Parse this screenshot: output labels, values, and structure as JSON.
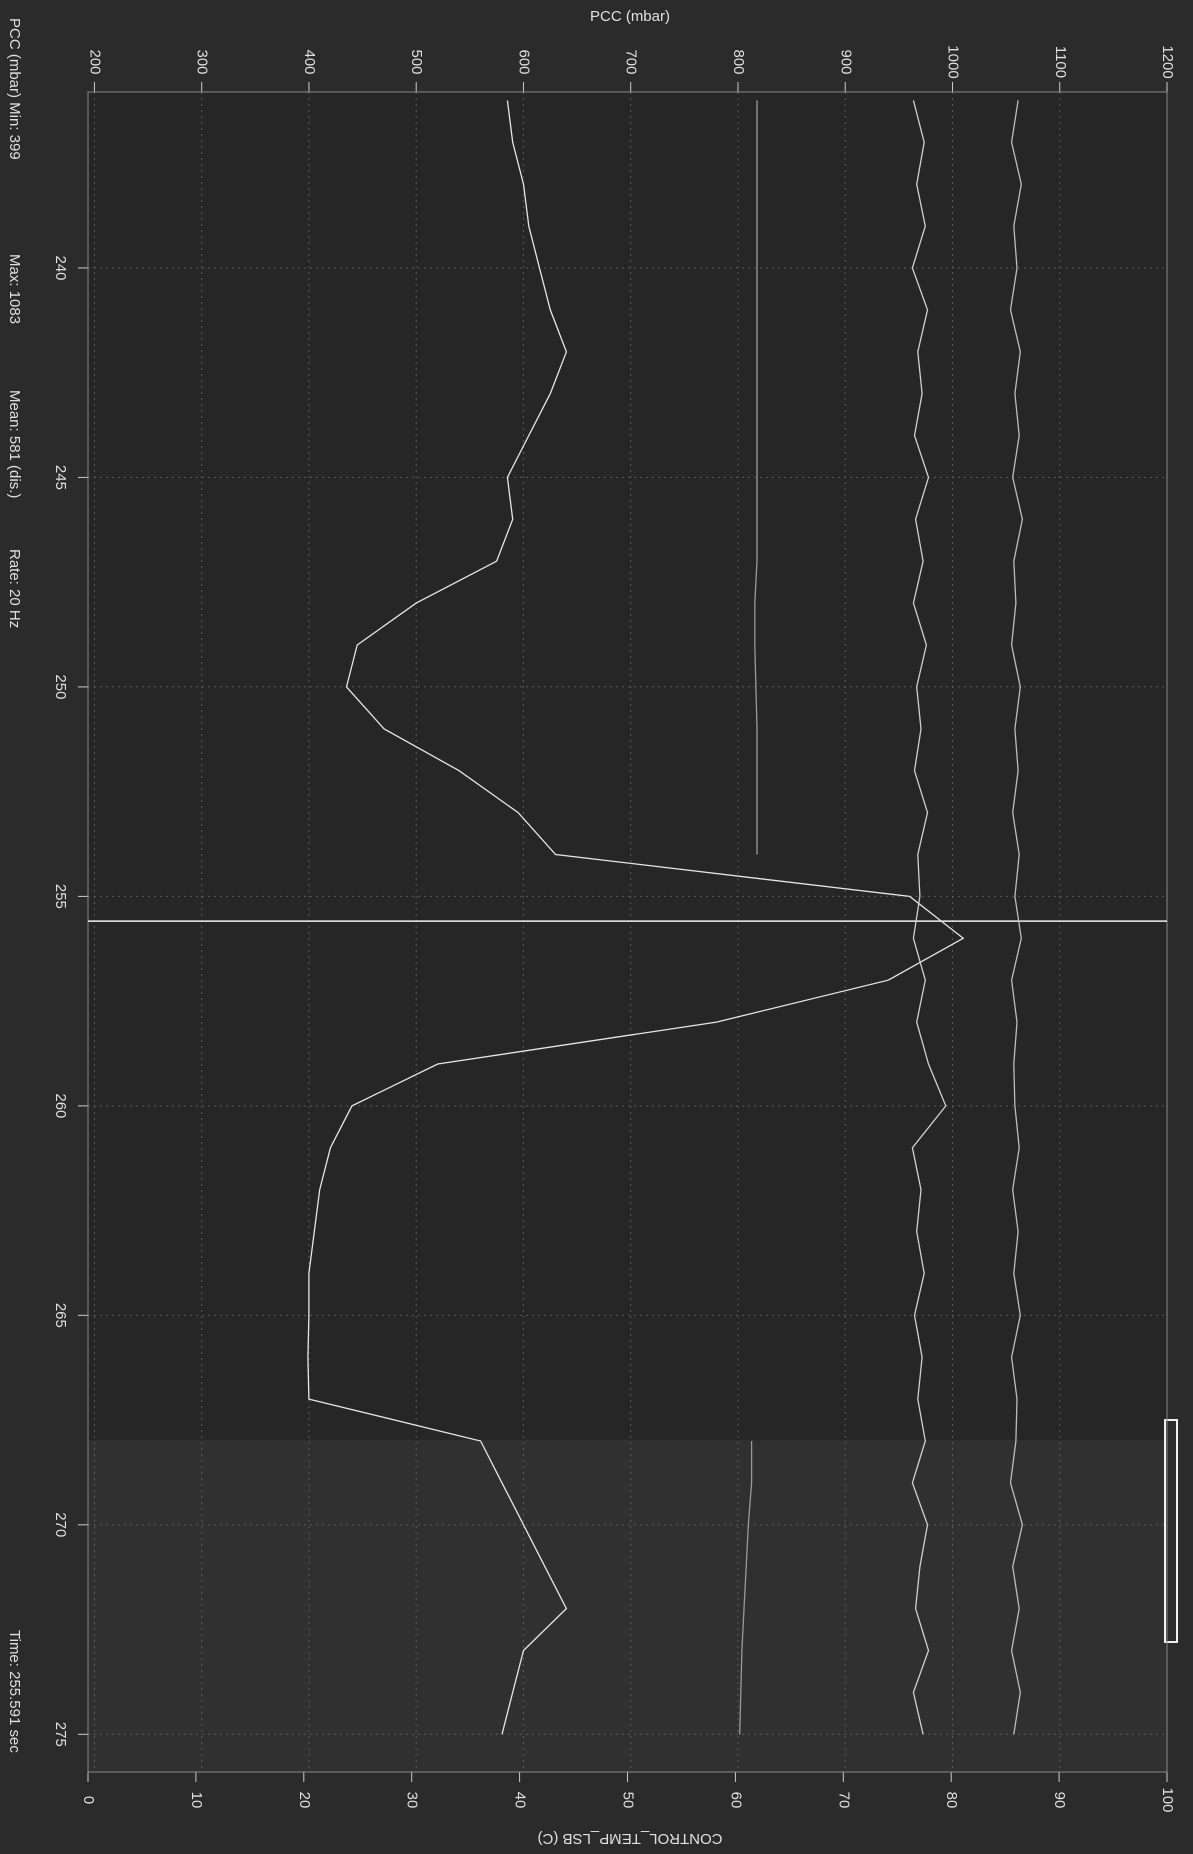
{
  "chart_data": {
    "type": "line",
    "y_label": "PCC (mbar)",
    "y2_label": "CONTROL_TEMP_LSB (C)",
    "info": [
      "PCC (mbar)  Min:  399",
      "Max:  1083",
      "Mean:  581 (dis.)",
      "Rate:  20 Hz"
    ],
    "cursor": {
      "value": 255.591,
      "label": "Time: 255.591 sec"
    },
    "x": [
      236,
      237,
      238,
      239,
      240,
      241,
      242,
      243,
      244,
      245,
      246,
      247,
      248,
      249,
      250,
      251,
      252,
      253,
      254,
      255,
      256,
      257,
      258,
      259,
      260,
      261,
      262,
      263,
      264,
      265,
      266,
      267,
      268,
      269,
      270,
      271,
      272,
      273,
      274,
      275
    ],
    "xlim": [
      235.8,
      275.9
    ],
    "xticks": [
      240,
      245,
      250,
      255,
      260,
      265,
      270,
      275
    ],
    "ylim": [
      194,
      1200
    ],
    "yticks": [
      200,
      300,
      400,
      500,
      600,
      700,
      800,
      900,
      1000,
      1100,
      1200
    ],
    "y2lim": [
      0,
      100
    ],
    "y2ticks": [
      0,
      10,
      20,
      30,
      40,
      50,
      60,
      70,
      80,
      90,
      100
    ],
    "grid": true,
    "series": [
      {
        "color": "#e6e6e6",
        "values": [
          585,
          590,
          600,
          605,
          615,
          625,
          640,
          625,
          605,
          585,
          590,
          575,
          500,
          445,
          435,
          470,
          540,
          595,
          630,
          960,
          1010,
          940,
          780,
          520,
          440,
          420,
          410,
          405,
          400,
          400,
          399,
          400,
          560,
          580,
          600,
          620,
          640,
          600,
          590,
          580
        ]
      },
      {
        "color": "#d0d0d0",
        "axis": "y2",
        "values": [
          76.5,
          77.5,
          76.8,
          77.6,
          76.4,
          77.8,
          76.9,
          77.3,
          76.6,
          77.9,
          76.7,
          77.4,
          76.5,
          77.7,
          76.8,
          77.2,
          76.6,
          77.8,
          76.9,
          77.1,
          76.5,
          77.6,
          76.8,
          77.9,
          79.5,
          76.4,
          77.2,
          76.8,
          77.5,
          76.6,
          77.3,
          76.9,
          77.6,
          76.4,
          77.8,
          77.1,
          76.7,
          77.9,
          76.5,
          77.4
        ]
      },
      {
        "color": "#bdbdbd",
        "axis": "y2",
        "values": [
          86.2,
          85.6,
          86.5,
          85.8,
          86.1,
          85.5,
          86.4,
          85.9,
          86.3,
          85.7,
          86.6,
          85.8,
          86.0,
          85.6,
          86.4,
          85.9,
          86.2,
          85.7,
          86.3,
          85.9,
          86.5,
          85.6,
          86.1,
          85.8,
          85.9,
          86.3,
          85.7,
          86.2,
          85.8,
          86.4,
          85.6,
          86.1,
          86.0,
          85.5,
          86.6,
          85.7,
          86.3,
          85.6,
          86.4,
          85.8
        ]
      },
      {
        "color": "#9a9a9a",
        "axis": "y2",
        "values": [
          62,
          62,
          62,
          62,
          62,
          62,
          62,
          62,
          62,
          62,
          62,
          62,
          61.8,
          61.8,
          61.9,
          62,
          62,
          62,
          62,
          null,
          null,
          null,
          null,
          null,
          null,
          null,
          null,
          null,
          null,
          null,
          null,
          null,
          61.5,
          61.5,
          61.2,
          61,
          60.8,
          60.6,
          60.5,
          60.4
        ]
      }
    ]
  }
}
